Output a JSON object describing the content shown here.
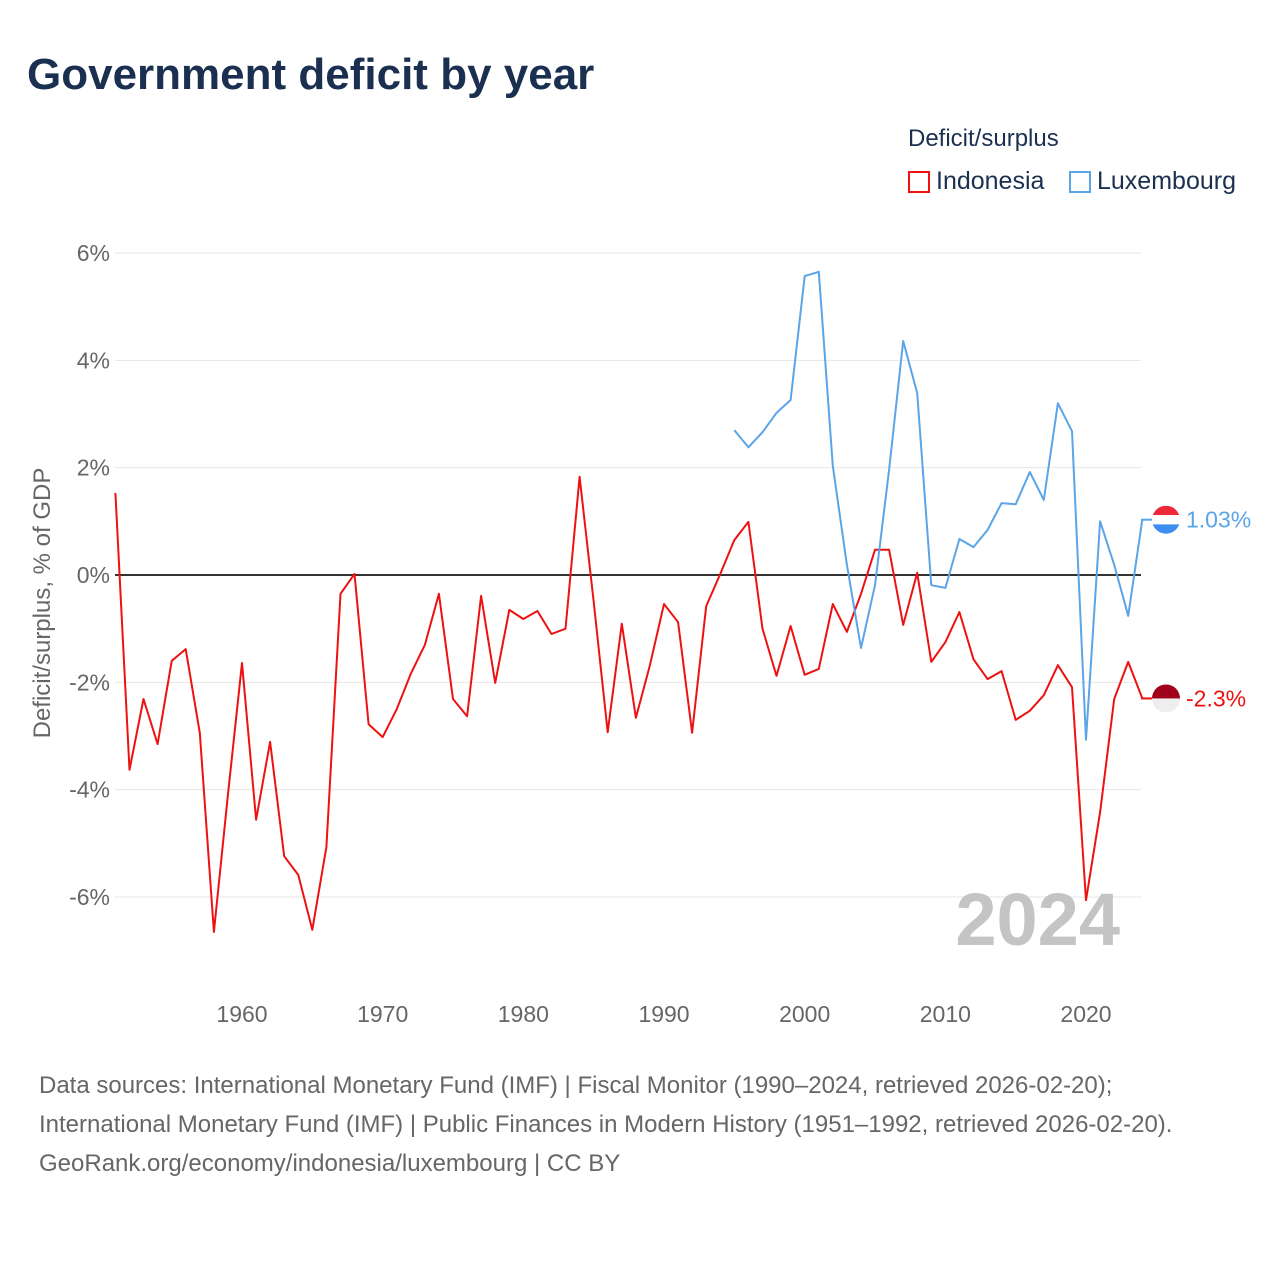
{
  "title": "Government deficit by year",
  "legend": {
    "title": "Deficit/surplus",
    "items": [
      {
        "label": "Indonesia",
        "color": "#ee1111"
      },
      {
        "label": "Luxembourg",
        "color": "#5ba4e8"
      }
    ]
  },
  "watermark_year": "2024",
  "end_labels": {
    "luxembourg": "1.03%",
    "indonesia": "-2.3%"
  },
  "sources": {
    "line1": "Data sources: International Monetary Fund (IMF) | Fiscal Monitor (1990–2024, retrieved 2026-02-20); International Monetary Fund (IMF) | Public Finances in Modern History (1951–1992, retrieved 2026-02-20).",
    "line2": "GeoRank.org/economy/indonesia/luxembourg | CC BY"
  },
  "chart_data": {
    "type": "line",
    "title": "Government deficit by year",
    "xlabel": "",
    "ylabel": "Deficit/surplus, % of GDP",
    "xlim": [
      1951,
      2024
    ],
    "ylim": [
      -7.5,
      6.5
    ],
    "x_ticks": [
      1960,
      1970,
      1980,
      1990,
      2000,
      2010,
      2020
    ],
    "y_ticks": [
      6,
      4,
      2,
      0,
      -2,
      -4,
      -6
    ],
    "y_tick_labels": [
      "6%",
      "4%",
      "2%",
      "0%",
      "-2%",
      "-4%",
      "-6%"
    ],
    "legend_position": "top-right",
    "series": [
      {
        "name": "Indonesia",
        "color": "#ee1111",
        "start_year": 1951,
        "values": [
          1.53,
          -3.63,
          -2.31,
          -3.15,
          -1.6,
          -1.38,
          -2.94,
          -6.65,
          -4.1,
          -1.64,
          -4.56,
          -3.11,
          -5.24,
          -5.59,
          -6.61,
          -5.07,
          -0.35,
          0.02,
          -2.78,
          -3.02,
          -2.5,
          -1.84,
          -1.3,
          -0.35,
          -2.31,
          -2.63,
          -0.39,
          -2.01,
          -0.65,
          -0.82,
          -0.67,
          -1.1,
          -1.0,
          1.83,
          -0.5,
          -2.93,
          -0.91,
          -2.66,
          -1.68,
          -0.54,
          -0.88,
          -2.94,
          -0.58,
          0.02,
          0.65,
          0.99,
          -1.0,
          -1.88,
          -0.95,
          -1.86,
          -1.75,
          -0.54,
          -1.06,
          -0.35,
          0.47,
          0.47,
          -0.93,
          0.04,
          -1.62,
          -1.25,
          -0.69,
          -1.57,
          -1.94,
          -1.79,
          -2.7,
          -2.53,
          -2.24,
          -1.68,
          -2.09,
          -6.06,
          -4.42,
          -2.31,
          -1.62,
          -2.3
        ]
      },
      {
        "name": "Luxembourg",
        "color": "#5ba4e8",
        "start_year": 1995,
        "values": [
          2.7,
          2.38,
          2.66,
          3.02,
          3.26,
          5.57,
          5.65,
          2.03,
          0.19,
          -1.36,
          -0.19,
          1.96,
          4.36,
          3.39,
          -0.19,
          -0.24,
          0.67,
          0.52,
          0.84,
          1.34,
          1.32,
          1.92,
          1.4,
          3.2,
          2.68,
          -3.07,
          1.0,
          0.19,
          -0.76,
          1.03
        ]
      }
    ]
  }
}
